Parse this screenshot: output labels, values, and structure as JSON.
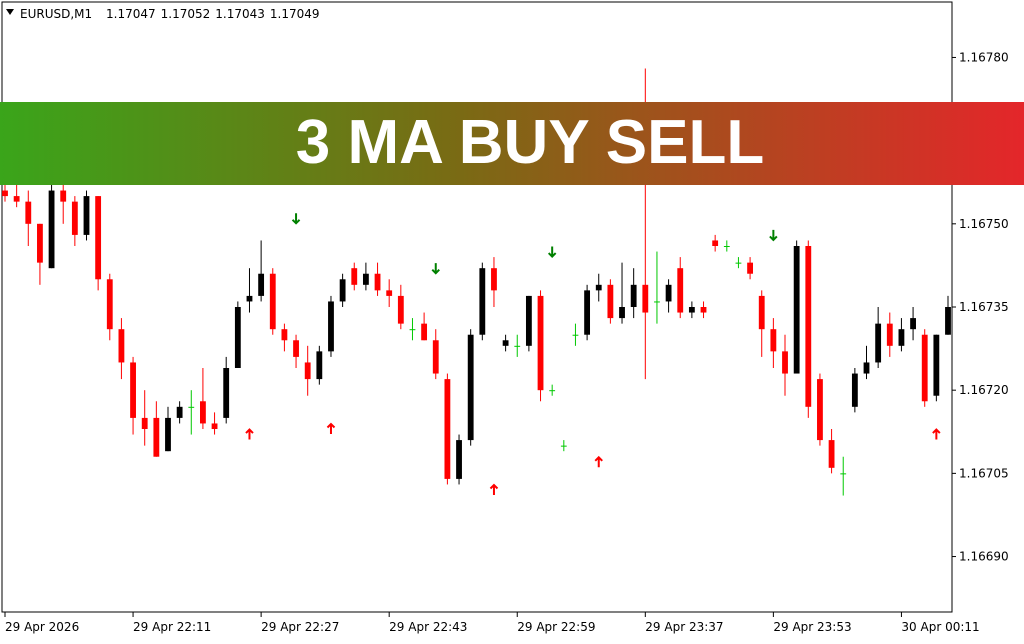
{
  "header": {
    "symbol": "EURUSD,M1",
    "ohlc": [
      1.17047,
      1.17052,
      1.17043,
      1.17049
    ]
  },
  "banner": "3 MA BUY SELL",
  "chart_data": {
    "type": "candlestick",
    "xlim": [
      0,
      81
    ],
    "xticks": [
      {
        "value": 0,
        "label": "29 Apr 2026"
      },
      {
        "value": 11,
        "label": "29 Apr 22:11"
      },
      {
        "value": 22,
        "label": "29 Apr 22:27"
      },
      {
        "value": 33,
        "label": "29 Apr 22:43"
      },
      {
        "value": 44,
        "label": "29 Apr 22:59"
      },
      {
        "value": 55,
        "label": "29 Apr 23:37"
      },
      {
        "value": 66,
        "label": "29 Apr 23:53"
      },
      {
        "value": 77,
        "label": "30 Apr 00:11"
      }
    ],
    "ylim": [
      1.1668,
      1.1679
    ],
    "yticks": [
      {
        "value": 1.1678,
        "label": "1.16780"
      },
      {
        "value": 1.1675,
        "label": "1.16750"
      },
      1.16735,
      {
        "value": 1.1672,
        "label": "1.16720"
      },
      1.16705,
      {
        "value": 1.1669,
        "label": "1.16690"
      }
    ],
    "up_color": "#000000",
    "down_color": "#ff0000",
    "doji_color": "#00c800",
    "open": [
      1.16756,
      1.16755,
      1.16754,
      1.1675,
      1.16742,
      1.16756,
      1.16754,
      1.16748,
      1.16755,
      1.1674,
      1.16731,
      1.16725,
      1.16715,
      1.16715,
      1.16709,
      1.16715,
      1.16717,
      1.16718,
      1.16714,
      1.16715,
      1.16724,
      1.16736,
      1.16737,
      1.16741,
      1.16731,
      1.16729,
      1.16725,
      1.16722,
      1.16727,
      1.16736,
      1.16742,
      1.16739,
      1.16741,
      1.16738,
      1.16737,
      1.16731,
      1.16732,
      1.16729,
      1.16722,
      1.16704,
      1.16711,
      1.1673,
      1.16742,
      1.16728,
      1.16728,
      1.16728,
      1.16737,
      1.1672,
      1.1671,
      1.1673,
      1.1673,
      1.16738,
      1.16739,
      1.16733,
      1.16735,
      1.16739,
      1.16736,
      1.16736,
      1.16742,
      1.16734,
      1.16735,
      1.16747,
      1.16746,
      1.16743,
      1.16743,
      1.16737,
      1.16731,
      1.16727,
      1.16723,
      1.16746,
      1.16722,
      1.16711,
      1.16705,
      1.16717,
      1.16723,
      1.16725,
      1.16732,
      1.16728,
      1.16731,
      1.1673,
      1.16719,
      1.1673
    ],
    "high": [
      1.16758,
      1.16757,
      1.16756,
      1.1675,
      1.16757,
      1.16757,
      1.16755,
      1.16756,
      1.16755,
      1.16741,
      1.16733,
      1.16726,
      1.1672,
      1.16718,
      1.16717,
      1.16718,
      1.1672,
      1.16724,
      1.16716,
      1.16726,
      1.16736,
      1.16742,
      1.16747,
      1.16742,
      1.16732,
      1.1673,
      1.16728,
      1.16728,
      1.16737,
      1.16741,
      1.16743,
      1.16743,
      1.16743,
      1.1674,
      1.16739,
      1.16733,
      1.16734,
      1.16731,
      1.16723,
      1.16712,
      1.16731,
      1.16743,
      1.16744,
      1.1673,
      1.1673,
      1.16737,
      1.16738,
      1.16721,
      1.16711,
      1.16732,
      1.16739,
      1.16741,
      1.1674,
      1.16743,
      1.16742,
      1.16778,
      1.16745,
      1.1674,
      1.16744,
      1.16736,
      1.16736,
      1.16748,
      1.16747,
      1.16744,
      1.16744,
      1.16738,
      1.16733,
      1.1673,
      1.16747,
      1.16747,
      1.16723,
      1.16713,
      1.16708,
      1.16724,
      1.16728,
      1.16735,
      1.16734,
      1.16733,
      1.16735,
      1.16731,
      1.1673,
      1.16737
    ],
    "low": [
      1.16754,
      1.16753,
      1.16746,
      1.16739,
      1.16742,
      1.1675,
      1.16746,
      1.16747,
      1.16738,
      1.16729,
      1.16722,
      1.16712,
      1.1671,
      1.16708,
      1.16709,
      1.16714,
      1.16712,
      1.16713,
      1.16712,
      1.16714,
      1.16724,
      1.16734,
      1.16736,
      1.1673,
      1.16727,
      1.16724,
      1.16719,
      1.16721,
      1.16726,
      1.16735,
      1.16738,
      1.16738,
      1.16737,
      1.16735,
      1.16731,
      1.16729,
      1.16729,
      1.16722,
      1.16703,
      1.16703,
      1.1671,
      1.16729,
      1.16735,
      1.16727,
      1.16726,
      1.16727,
      1.16718,
      1.16719,
      1.16709,
      1.16728,
      1.16729,
      1.16736,
      1.16732,
      1.16732,
      1.16733,
      1.16722,
      1.16732,
      1.16734,
      1.16733,
      1.16733,
      1.16733,
      1.16745,
      1.16745,
      1.16742,
      1.1674,
      1.16726,
      1.16724,
      1.16719,
      1.16723,
      1.16715,
      1.1671,
      1.16705,
      1.16701,
      1.16716,
      1.16722,
      1.16724,
      1.16726,
      1.16727,
      1.16729,
      1.16717,
      1.16718,
      1.1673
    ],
    "close": [
      1.16755,
      1.16754,
      1.1675,
      1.16743,
      1.16756,
      1.16754,
      1.16748,
      1.16755,
      1.1674,
      1.16731,
      1.16725,
      1.16715,
      1.16713,
      1.16708,
      1.16715,
      1.16717,
      1.16717,
      1.16714,
      1.16713,
      1.16724,
      1.16735,
      1.16737,
      1.16741,
      1.16731,
      1.16729,
      1.16726,
      1.16722,
      1.16727,
      1.16736,
      1.1674,
      1.16739,
      1.16741,
      1.16738,
      1.16737,
      1.16732,
      1.16731,
      1.16729,
      1.16723,
      1.16704,
      1.16711,
      1.1673,
      1.16742,
      1.16738,
      1.16729,
      1.16728,
      1.16737,
      1.1672,
      1.1672,
      1.1671,
      1.1673,
      1.16738,
      1.16739,
      1.16733,
      1.16735,
      1.16739,
      1.16734,
      1.16736,
      1.16739,
      1.16734,
      1.16735,
      1.16734,
      1.16746,
      1.16746,
      1.16743,
      1.16741,
      1.16731,
      1.16727,
      1.16723,
      1.16746,
      1.16717,
      1.16711,
      1.16706,
      1.16705,
      1.16723,
      1.16725,
      1.16732,
      1.16728,
      1.16731,
      1.16733,
      1.16718,
      1.1673,
      1.16735
    ],
    "buy_signals": {
      "color": "#ff0000",
      "x": [
        21,
        28,
        42,
        51,
        80
      ],
      "y": [
        1.16712,
        1.16713,
        1.16702,
        1.16707,
        1.16712
      ]
    },
    "sell_signals": {
      "color": "#008000",
      "x": [
        25,
        37,
        47,
        66
      ],
      "y": [
        1.16751,
        1.16742,
        1.16745,
        1.16748
      ]
    }
  }
}
